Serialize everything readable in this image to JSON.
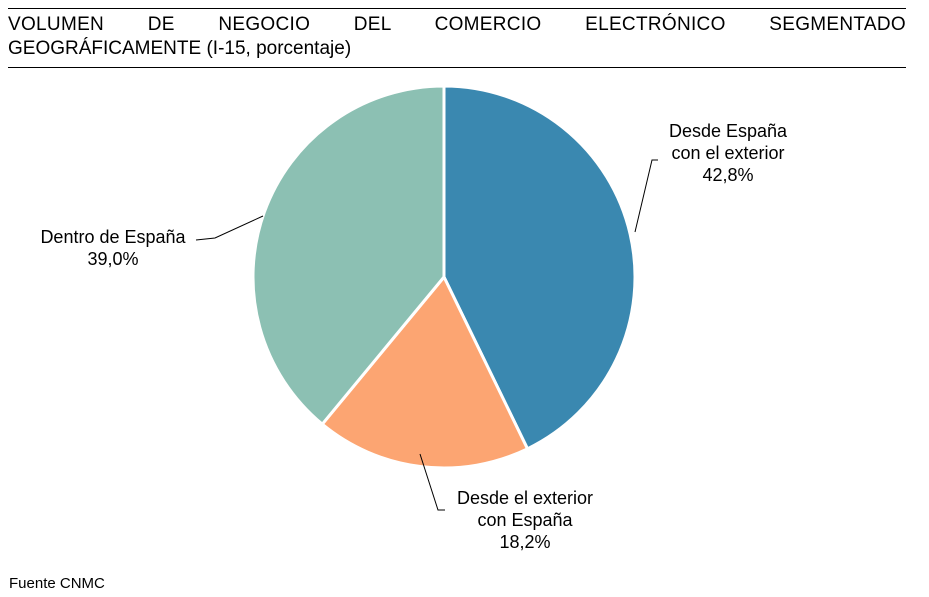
{
  "title": {
    "line1": "VOLUMEN DE NEGOCIO DEL COMERCIO ELECTRÓNICO SEGMENTADO",
    "line2": "GEOGRÁFICAMENTE (I-15, porcentaje)"
  },
  "chart_data": {
    "type": "pie",
    "title": "VOLUMEN DE NEGOCIO DEL COMERCIO ELECTRÓNICO SEGMENTADO GEOGRÁFICAMENTE (I-15, porcentaje)",
    "slices": [
      {
        "label_lines": [
          "Desde España",
          "con el exterior"
        ],
        "value": 42.8,
        "value_label": "42,8%",
        "color": "#3a88b0"
      },
      {
        "label_lines": [
          "Desde el exterior",
          "con España"
        ],
        "value": 18.2,
        "value_label": "18,2%",
        "color": "#fca572"
      },
      {
        "label_lines": [
          "Dentro de España"
        ],
        "value": 39.0,
        "value_label": "39,0%",
        "color": "#8cc0b3"
      }
    ]
  },
  "source": "Fuente CNMC"
}
